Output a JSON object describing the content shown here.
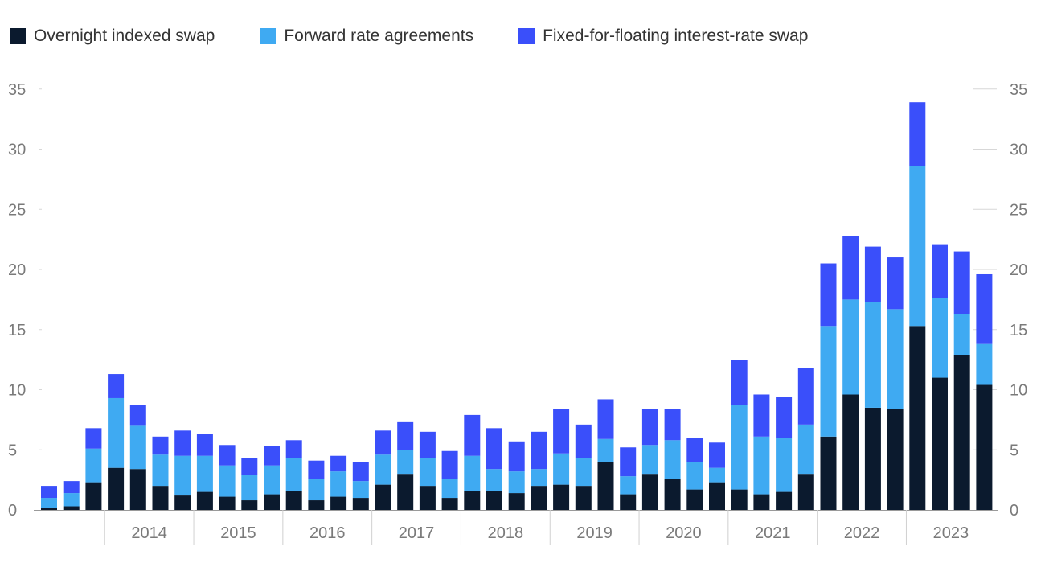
{
  "chart_data": {
    "type": "bar",
    "stacked": true,
    "title": "",
    "xlabel": "",
    "ylabel": "",
    "ylim": [
      0,
      35
    ],
    "y_ticks": [
      0,
      5,
      10,
      15,
      20,
      25,
      30,
      35
    ],
    "year_labels": [
      "2014",
      "2015",
      "2016",
      "2017",
      "2018",
      "2019",
      "2020",
      "2021",
      "2022",
      "2023"
    ],
    "categories": [
      "2013 Q2",
      "2013 Q3",
      "2013 Q4",
      "2014 Q1",
      "2014 Q2",
      "2014 Q3",
      "2014 Q4",
      "2015 Q1",
      "2015 Q2",
      "2015 Q3",
      "2015 Q4",
      "2016 Q1",
      "2016 Q2",
      "2016 Q3",
      "2016 Q4",
      "2017 Q1",
      "2017 Q2",
      "2017 Q3",
      "2017 Q4",
      "2018 Q1",
      "2018 Q2",
      "2018 Q3",
      "2018 Q4",
      "2019 Q1",
      "2019 Q2",
      "2019 Q3",
      "2019 Q4",
      "2020 Q1",
      "2020 Q2",
      "2020 Q3",
      "2020 Q4",
      "2021 Q1",
      "2021 Q2",
      "2021 Q3",
      "2021 Q4",
      "2022 Q1",
      "2022 Q2",
      "2022 Q3",
      "2022 Q4",
      "2023 Q1",
      "2023 Q2",
      "2023 Q3",
      "2023 Q4"
    ],
    "series": [
      {
        "name": "Overnight indexed swap",
        "color": "#0b1a2e",
        "values": [
          0.2,
          0.3,
          2.3,
          3.5,
          3.4,
          2.0,
          1.2,
          1.5,
          1.1,
          0.8,
          1.3,
          1.6,
          0.8,
          1.1,
          1.0,
          2.1,
          3.0,
          2.0,
          1.0,
          1.6,
          1.6,
          1.4,
          2.0,
          2.1,
          2.0,
          4.0,
          1.3,
          3.0,
          2.6,
          1.7,
          2.3,
          1.7,
          1.3,
          1.5,
          3.0,
          6.1,
          9.6,
          8.5,
          8.4,
          15.3,
          11.0,
          12.9,
          10.4
        ]
      },
      {
        "name": "Forward rate agreements",
        "color": "#3faaf2",
        "values": [
          0.8,
          1.1,
          2.8,
          5.8,
          3.6,
          2.6,
          3.3,
          3.0,
          2.6,
          2.1,
          2.4,
          2.7,
          1.8,
          2.1,
          1.4,
          2.5,
          2.0,
          2.3,
          1.6,
          2.9,
          1.8,
          1.8,
          1.4,
          2.6,
          2.3,
          1.9,
          1.5,
          2.4,
          3.2,
          2.3,
          1.2,
          7.0,
          4.8,
          4.5,
          4.1,
          9.2,
          7.9,
          8.8,
          8.3,
          13.3,
          6.6,
          3.4,
          3.4
        ]
      },
      {
        "name": "Fixed-for-floating interest-rate swap",
        "color": "#3a4ffa",
        "values": [
          1.0,
          1.0,
          1.7,
          2.0,
          1.7,
          1.5,
          2.1,
          1.8,
          1.7,
          1.4,
          1.6,
          1.5,
          1.5,
          1.3,
          1.6,
          2.0,
          2.3,
          2.2,
          2.3,
          3.4,
          3.4,
          2.5,
          3.1,
          3.7,
          2.8,
          3.3,
          2.4,
          3.0,
          2.6,
          2.0,
          2.1,
          3.8,
          3.5,
          3.4,
          4.7,
          5.2,
          5.3,
          4.6,
          4.3,
          5.3,
          4.5,
          5.2,
          5.8
        ]
      }
    ]
  }
}
